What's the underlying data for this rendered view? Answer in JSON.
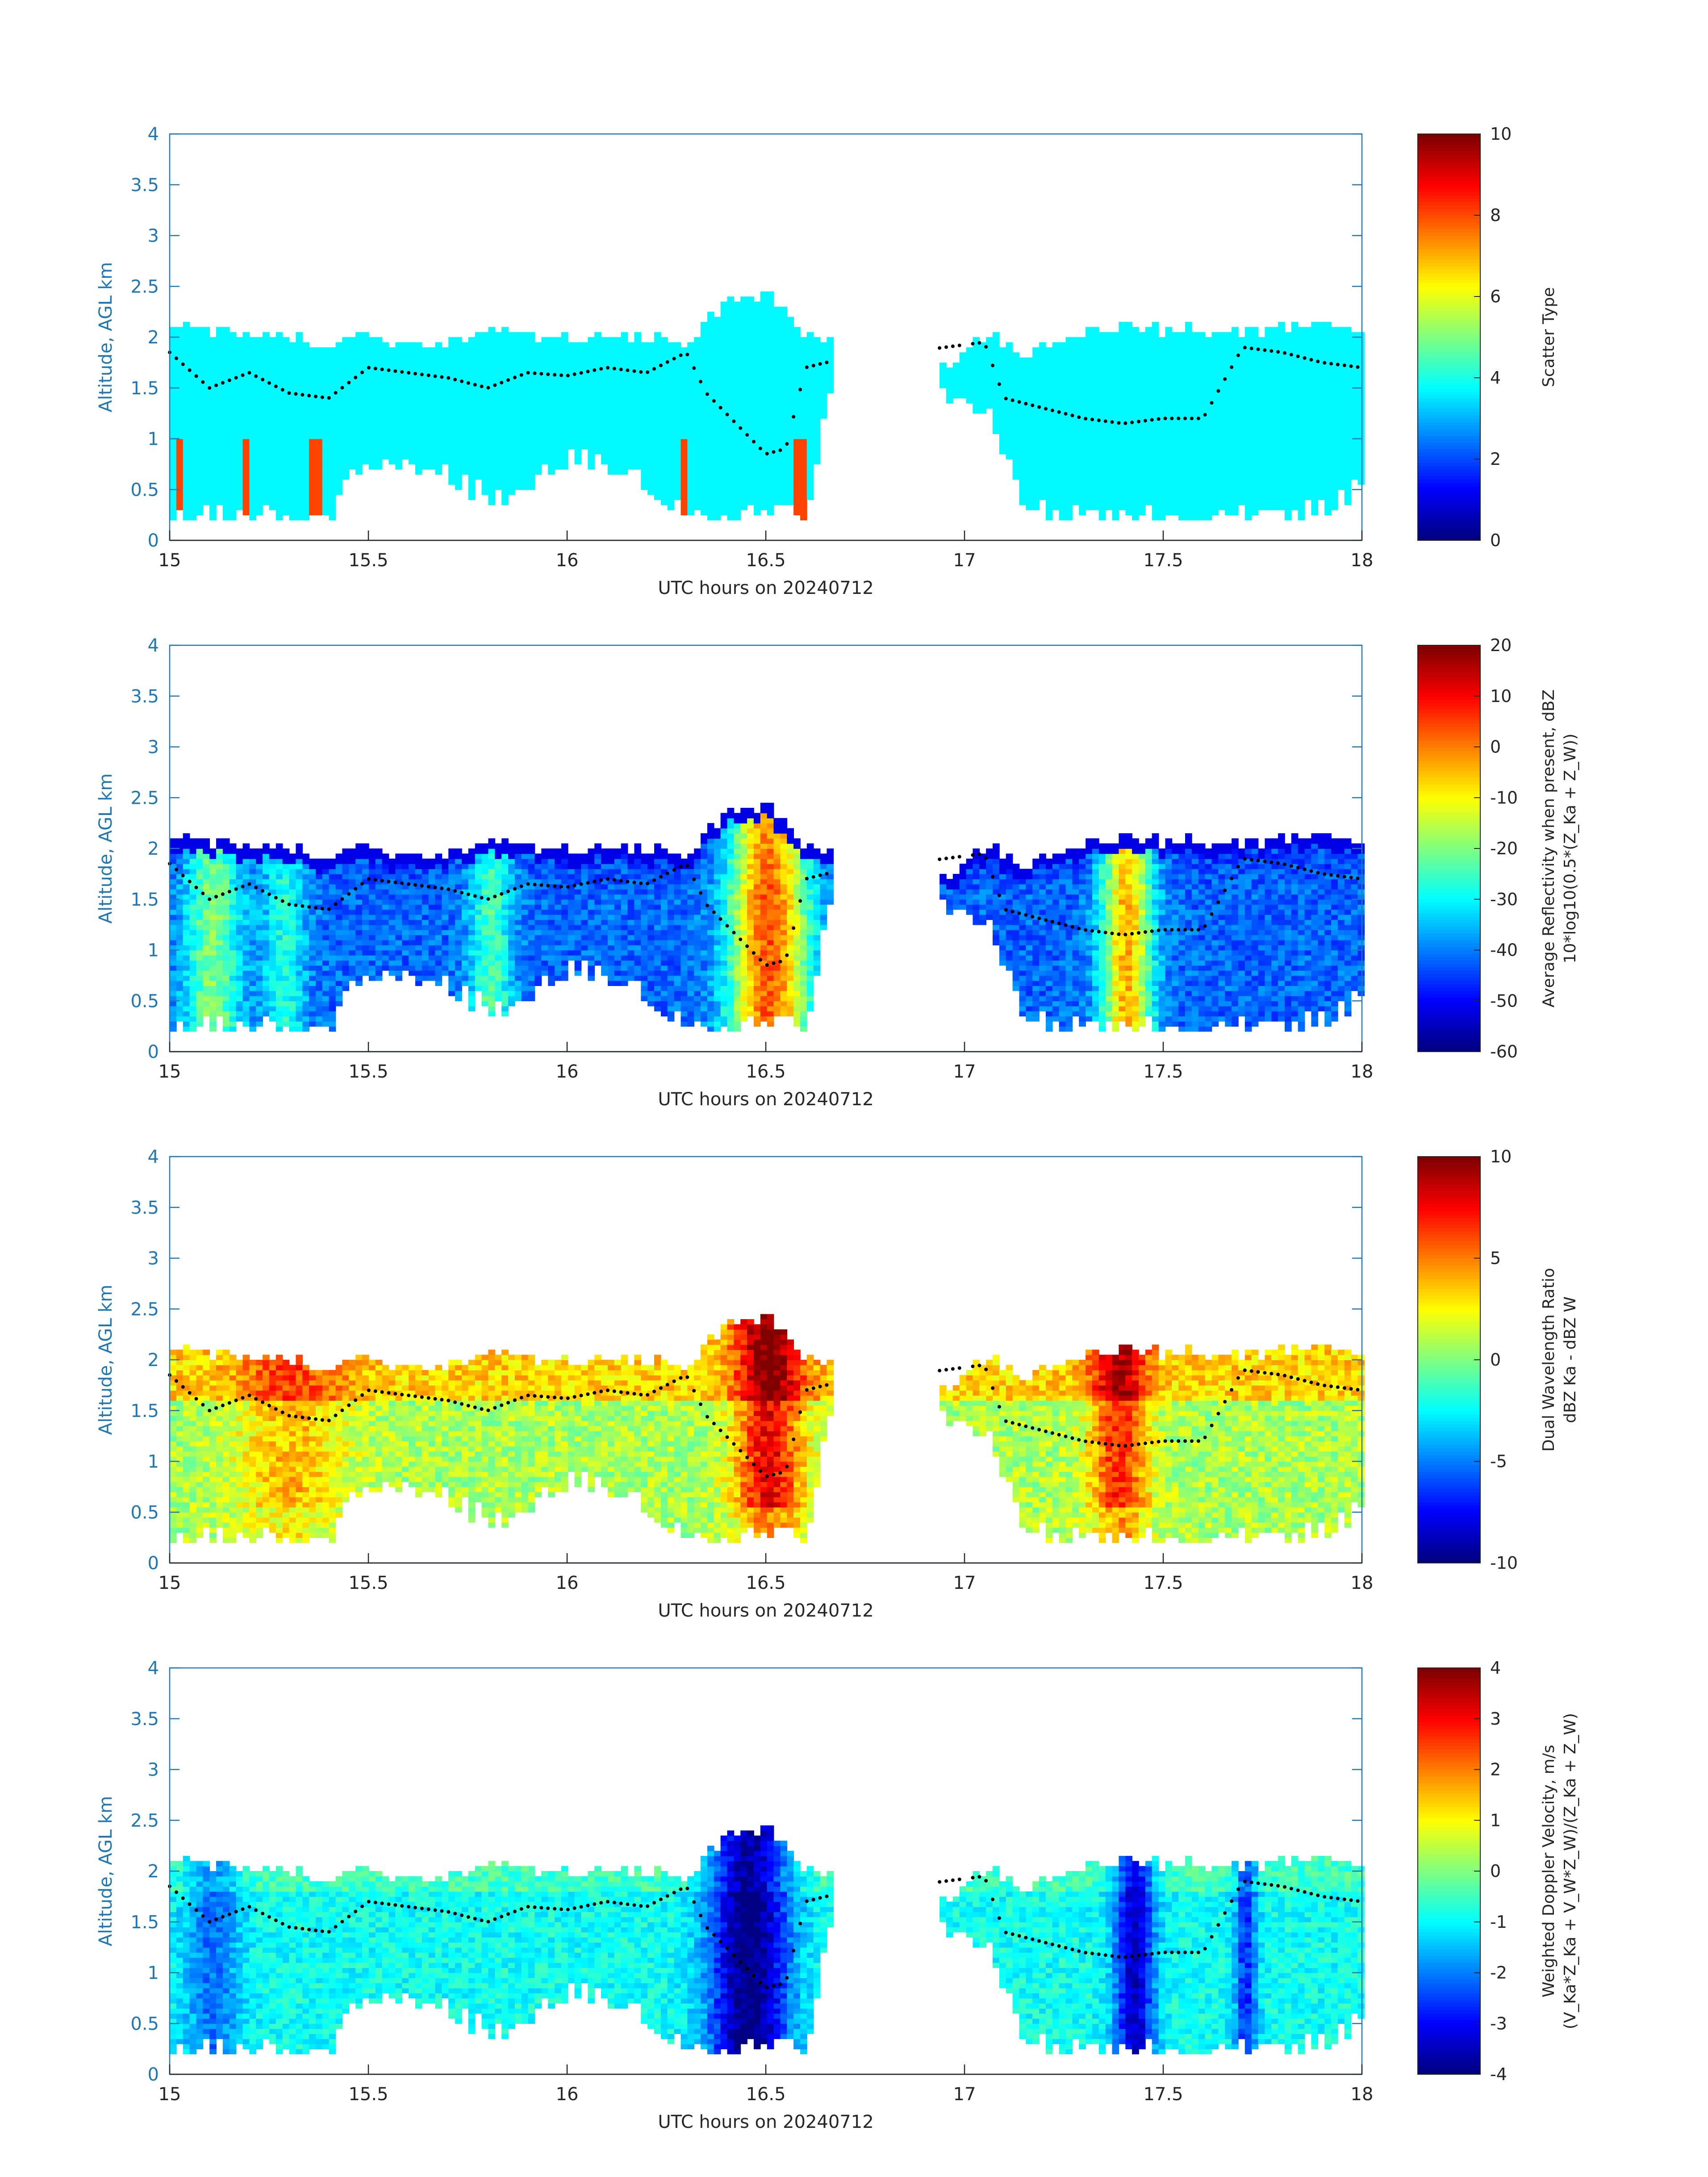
{
  "chart_data": [
    {
      "type": "heatmap",
      "xlabel": "UTC hours on 20240712",
      "ylabel": "Altitude, AGL km",
      "xlim": [
        15,
        18
      ],
      "ylim": [
        0,
        4
      ],
      "xticks": [
        "15",
        "15.5",
        "16",
        "16.5",
        "17",
        "17.5",
        "18"
      ],
      "yticks": [
        "0",
        "0.5",
        "1",
        "1.5",
        "2",
        "2.5",
        "3",
        "3.5",
        "4"
      ],
      "field": "type",
      "colorbar": {
        "label_lines": [
          "Scatter Type"
        ],
        "range": [
          0,
          10
        ],
        "ticks": [
          "0",
          "2",
          "4",
          "6",
          "8",
          "10"
        ],
        "colormap": "jet"
      }
    },
    {
      "type": "heatmap",
      "xlabel": "UTC hours on 20240712",
      "ylabel": "Altitude, AGL km",
      "xlim": [
        15,
        18
      ],
      "ylim": [
        0,
        4
      ],
      "xticks": [
        "15",
        "15.5",
        "16",
        "16.5",
        "17",
        "17.5",
        "18"
      ],
      "yticks": [
        "0",
        "0.5",
        "1",
        "1.5",
        "2",
        "2.5",
        "3",
        "3.5",
        "4"
      ],
      "field": "refl",
      "colorbar": {
        "label_lines": [
          "Average Reflectivity when present, dBZ",
          "10*log10(0.5*(Z_Ka + Z_W))"
        ],
        "range": [
          -60,
          20
        ],
        "ticks": [
          "-60",
          "-50",
          "-40",
          "-30",
          "-20",
          "-10",
          "0",
          "10",
          "20"
        ],
        "colormap": "jet"
      }
    },
    {
      "type": "heatmap",
      "xlabel": "UTC hours on 20240712",
      "ylabel": "Altitude, AGL km",
      "xlim": [
        15,
        18
      ],
      "ylim": [
        0,
        4
      ],
      "xticks": [
        "15",
        "15.5",
        "16",
        "16.5",
        "17",
        "17.5",
        "18"
      ],
      "yticks": [
        "0",
        "0.5",
        "1",
        "1.5",
        "2",
        "2.5",
        "3",
        "3.5",
        "4"
      ],
      "field": "dwr",
      "colorbar": {
        "label_lines": [
          "Dual Wavelength Ratio",
          "dBZ Ka - dBZ W"
        ],
        "range": [
          -10,
          10
        ],
        "ticks": [
          "-10",
          "-5",
          "0",
          "5",
          "10"
        ],
        "colormap": "jet"
      }
    },
    {
      "type": "heatmap",
      "xlabel": "UTC hours on 20240712",
      "ylabel": "Altitude, AGL km",
      "xlim": [
        15,
        18
      ],
      "ylim": [
        0,
        4
      ],
      "xticks": [
        "15",
        "15.5",
        "16",
        "16.5",
        "17",
        "17.5",
        "18"
      ],
      "yticks": [
        "0",
        "0.5",
        "1",
        "1.5",
        "2",
        "2.5",
        "3",
        "3.5",
        "4"
      ],
      "field": "vel",
      "colorbar": {
        "label_lines": [
          "Weighted Doppler Velocity, m/s",
          "(V_Ka*Z_Ka + V_W*Z_W)/(Z_Ka + Z_W)"
        ],
        "range": [
          -4,
          4
        ],
        "ticks": [
          "-4",
          "-3",
          "-2",
          "-1",
          "0",
          "1",
          "2",
          "3",
          "4"
        ],
        "colormap": "jet"
      }
    }
  ],
  "cloud_mask": {
    "x": [
      15.0,
      15.1,
      15.2,
      15.3,
      15.4,
      15.45,
      15.55,
      15.7,
      15.8,
      15.9,
      16.0,
      16.1,
      16.2,
      16.3,
      16.4,
      16.5,
      16.6,
      16.65,
      16.95,
      17.05,
      17.15,
      17.3,
      17.45,
      17.6,
      17.75,
      17.9,
      18.0
    ],
    "top": [
      2.1,
      2.05,
      2.0,
      1.95,
      1.9,
      2.0,
      1.9,
      1.95,
      2.05,
      2.0,
      1.95,
      2.0,
      1.95,
      1.95,
      2.35,
      2.4,
      2.0,
      1.95,
      1.7,
      2.0,
      1.8,
      2.05,
      2.05,
      2.05,
      2.05,
      2.1,
      2.05
    ],
    "base": [
      0.2,
      0.2,
      0.2,
      0.2,
      0.2,
      0.6,
      0.8,
      0.6,
      0.4,
      0.5,
      0.8,
      0.7,
      0.5,
      0.2,
      0.2,
      0.2,
      0.3,
      1.5,
      1.4,
      1.2,
      0.3,
      0.2,
      0.2,
      0.2,
      0.2,
      0.3,
      0.6
    ]
  },
  "boundary_dots": {
    "x": [
      15.0,
      15.1,
      15.2,
      15.3,
      15.4,
      15.5,
      15.6,
      15.7,
      15.8,
      15.9,
      16.0,
      16.1,
      16.2,
      16.3,
      16.35,
      16.45,
      16.5,
      16.55,
      16.6,
      16.65,
      17.05,
      17.1,
      17.2,
      17.3,
      17.4,
      17.5,
      17.6,
      17.7,
      17.8,
      17.9,
      18.0
    ],
    "y": [
      1.85,
      1.5,
      1.65,
      1.45,
      1.4,
      1.7,
      1.65,
      1.6,
      1.5,
      1.65,
      1.62,
      1.7,
      1.65,
      1.85,
      1.45,
      1.05,
      0.85,
      0.9,
      1.7,
      1.75,
      1.95,
      1.4,
      1.3,
      1.2,
      1.15,
      1.2,
      1.2,
      1.9,
      1.85,
      1.75,
      1.7
    ]
  }
}
